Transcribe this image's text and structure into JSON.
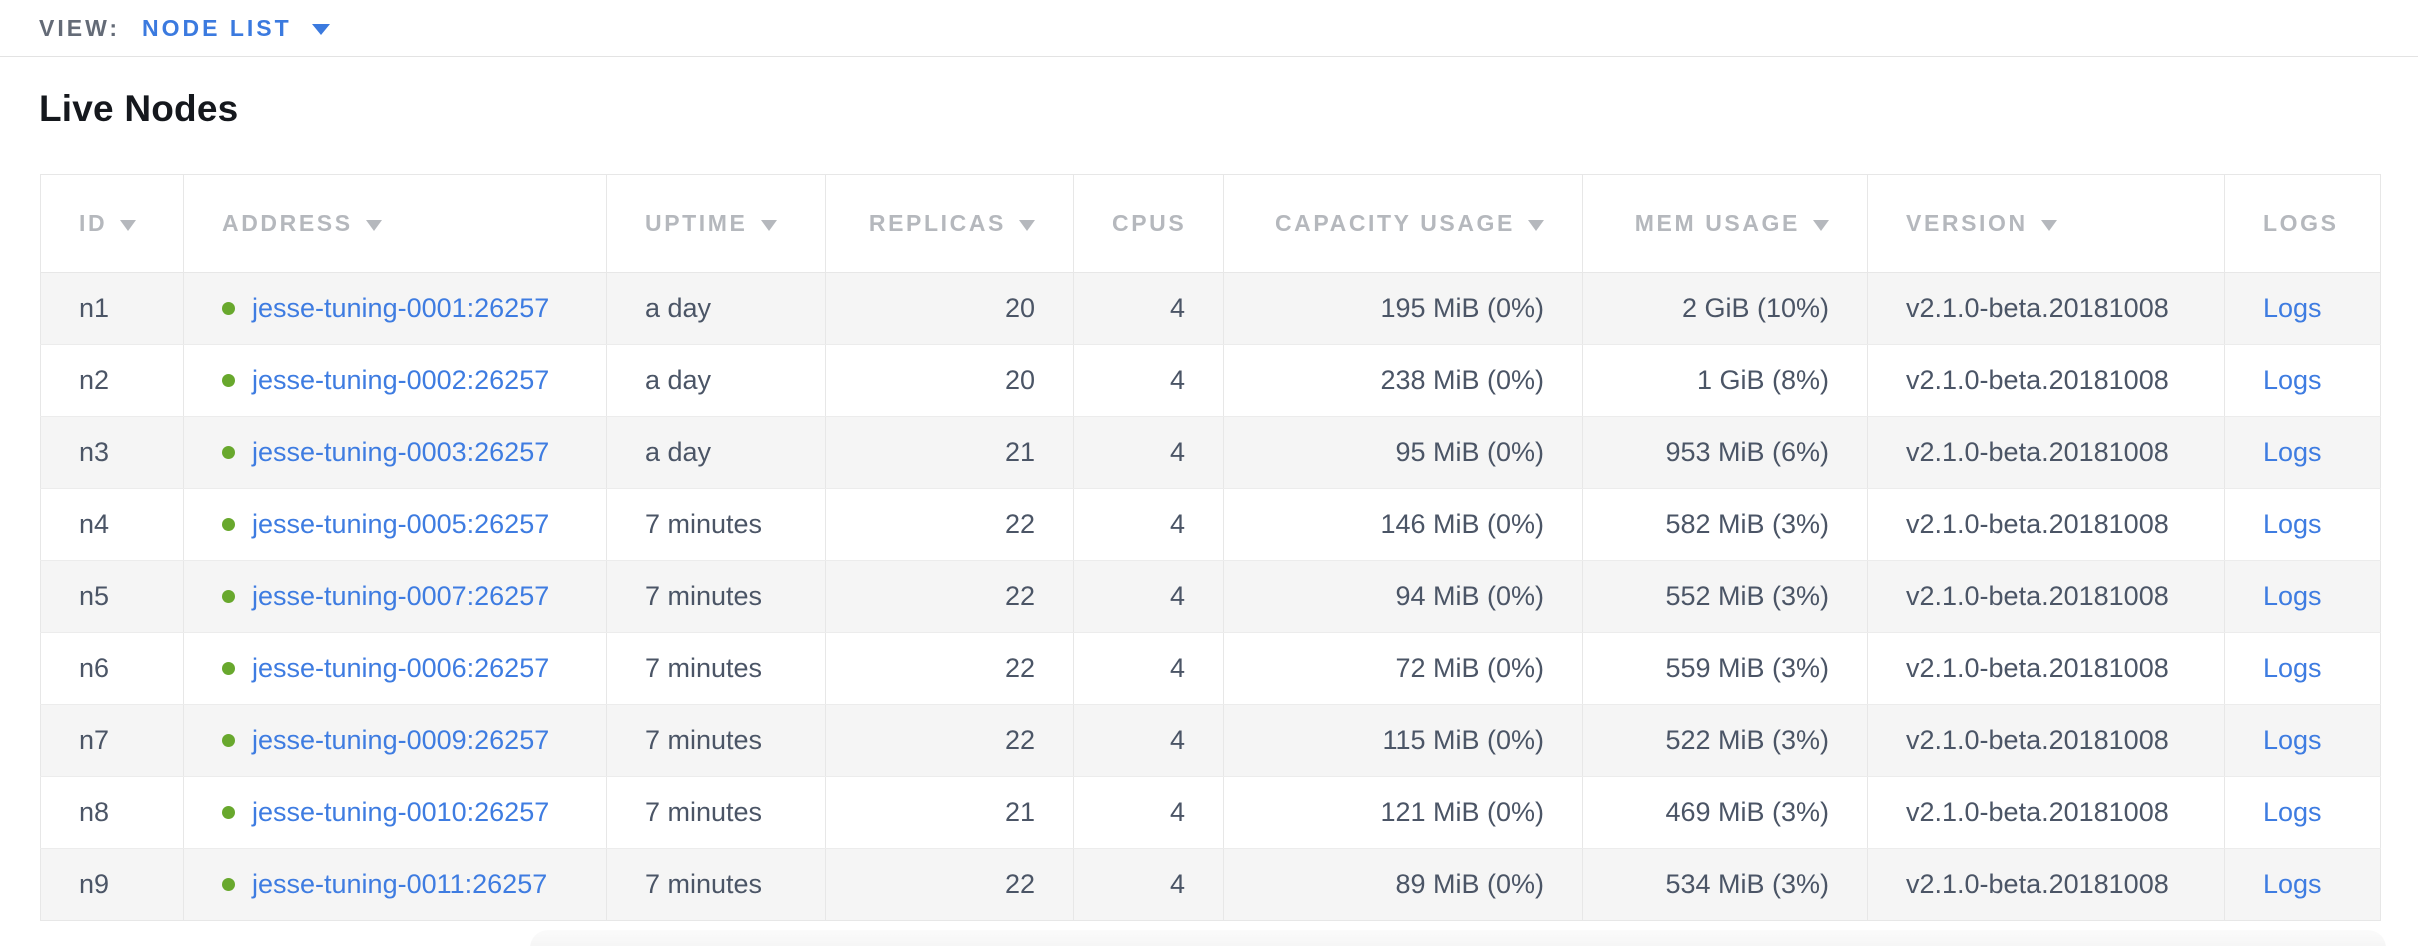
{
  "view_bar": {
    "label": "VIEW:",
    "selected": "NODE LIST"
  },
  "page": {
    "title": "Live Nodes"
  },
  "table": {
    "columns": [
      {
        "label": "ID",
        "sortable": true,
        "align": "left"
      },
      {
        "label": "ADDRESS",
        "sortable": true,
        "align": "left"
      },
      {
        "label": "UPTIME",
        "sortable": true,
        "align": "left"
      },
      {
        "label": "REPLICAS",
        "sortable": true,
        "align": "right"
      },
      {
        "label": "CPUS",
        "sortable": false,
        "align": "right"
      },
      {
        "label": "CAPACITY USAGE",
        "sortable": true,
        "align": "right"
      },
      {
        "label": "MEM USAGE",
        "sortable": true,
        "align": "right"
      },
      {
        "label": "VERSION",
        "sortable": true,
        "align": "left"
      },
      {
        "label": "LOGS",
        "sortable": false,
        "align": "left"
      }
    ],
    "rows": [
      {
        "id": "n1",
        "status": "live",
        "address": "jesse-tuning-0001:26257",
        "uptime": "a day",
        "replicas": "20",
        "cpus": "4",
        "capacity_usage": "195 MiB (0%)",
        "mem_usage": "2 GiB (10%)",
        "version": "v2.1.0-beta.20181008",
        "logs": "Logs"
      },
      {
        "id": "n2",
        "status": "live",
        "address": "jesse-tuning-0002:26257",
        "uptime": "a day",
        "replicas": "20",
        "cpus": "4",
        "capacity_usage": "238 MiB (0%)",
        "mem_usage": "1 GiB (8%)",
        "version": "v2.1.0-beta.20181008",
        "logs": "Logs"
      },
      {
        "id": "n3",
        "status": "live",
        "address": "jesse-tuning-0003:26257",
        "uptime": "a day",
        "replicas": "21",
        "cpus": "4",
        "capacity_usage": "95 MiB (0%)",
        "mem_usage": "953 MiB (6%)",
        "version": "v2.1.0-beta.20181008",
        "logs": "Logs"
      },
      {
        "id": "n4",
        "status": "live",
        "address": "jesse-tuning-0005:26257",
        "uptime": "7 minutes",
        "replicas": "22",
        "cpus": "4",
        "capacity_usage": "146 MiB (0%)",
        "mem_usage": "582 MiB (3%)",
        "version": "v2.1.0-beta.20181008",
        "logs": "Logs"
      },
      {
        "id": "n5",
        "status": "live",
        "address": "jesse-tuning-0007:26257",
        "uptime": "7 minutes",
        "replicas": "22",
        "cpus": "4",
        "capacity_usage": "94 MiB (0%)",
        "mem_usage": "552 MiB (3%)",
        "version": "v2.1.0-beta.20181008",
        "logs": "Logs"
      },
      {
        "id": "n6",
        "status": "live",
        "address": "jesse-tuning-0006:26257",
        "uptime": "7 minutes",
        "replicas": "22",
        "cpus": "4",
        "capacity_usage": "72 MiB (0%)",
        "mem_usage": "559 MiB (3%)",
        "version": "v2.1.0-beta.20181008",
        "logs": "Logs"
      },
      {
        "id": "n7",
        "status": "live",
        "address": "jesse-tuning-0009:26257",
        "uptime": "7 minutes",
        "replicas": "22",
        "cpus": "4",
        "capacity_usage": "115 MiB (0%)",
        "mem_usage": "522 MiB (3%)",
        "version": "v2.1.0-beta.20181008",
        "logs": "Logs"
      },
      {
        "id": "n8",
        "status": "live",
        "address": "jesse-tuning-0010:26257",
        "uptime": "7 minutes",
        "replicas": "21",
        "cpus": "4",
        "capacity_usage": "121 MiB (0%)",
        "mem_usage": "469 MiB (3%)",
        "version": "v2.1.0-beta.20181008",
        "logs": "Logs"
      },
      {
        "id": "n9",
        "status": "live",
        "address": "jesse-tuning-0011:26257",
        "uptime": "7 minutes",
        "replicas": "22",
        "cpus": "4",
        "capacity_usage": "89 MiB (0%)",
        "mem_usage": "534 MiB (3%)",
        "version": "v2.1.0-beta.20181008",
        "logs": "Logs"
      }
    ]
  },
  "icons": {
    "view_caret": "chevron-down",
    "sort_caret": "triangle-down",
    "status_dot": "circle"
  },
  "colors": {
    "accent_blue": "#3b7adf",
    "link_blue": "#3e7ce1",
    "status_dot_green": "#68a82d",
    "header_text": "#b5b8bd",
    "body_text": "#4b5566",
    "row_stripe": "#f5f5f5",
    "table_border": "#e7e7e7",
    "topbar_label": "#646b77"
  }
}
